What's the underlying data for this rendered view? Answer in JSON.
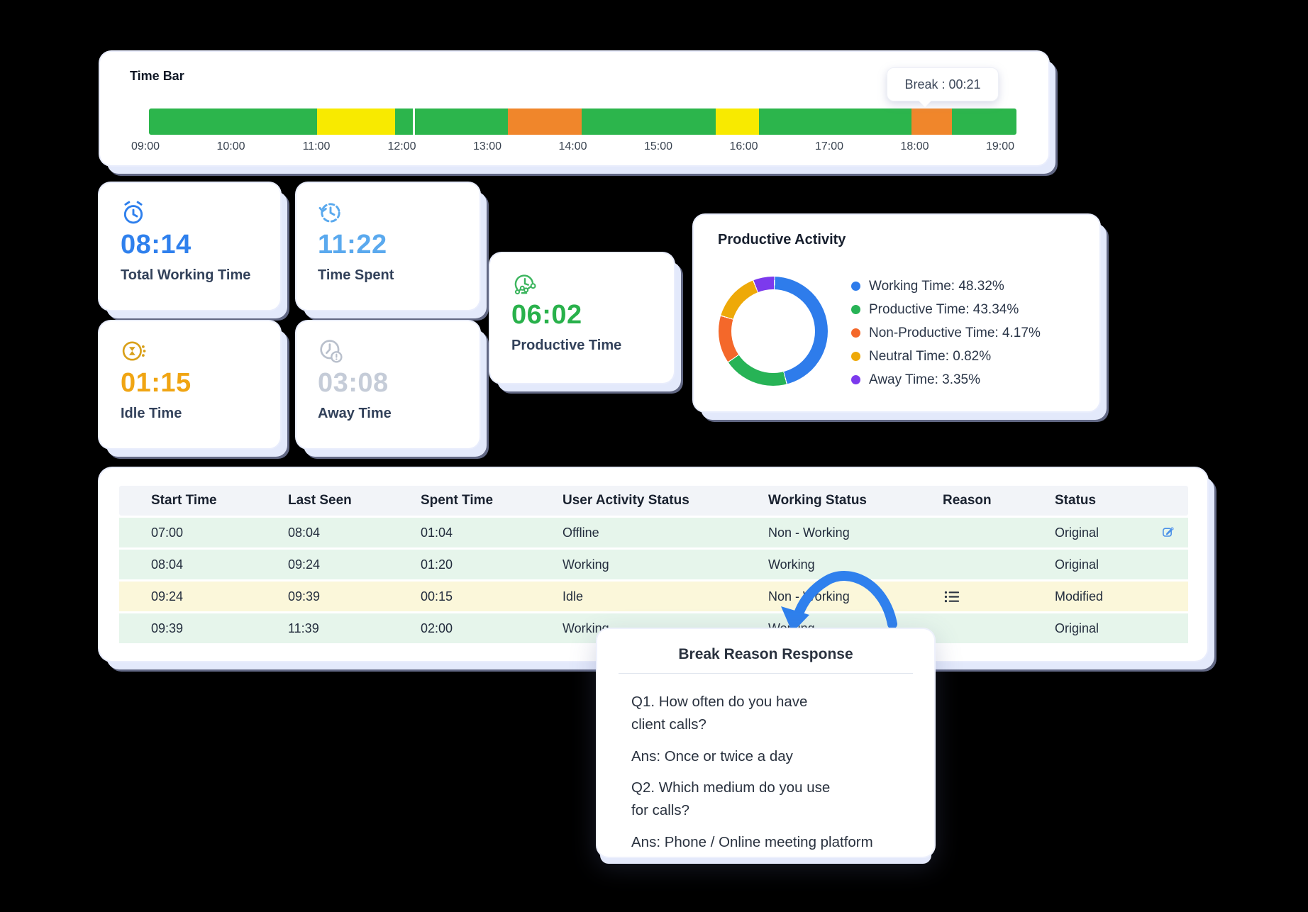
{
  "colors": {
    "working": "#2cb54c",
    "idle": "#f8ea00",
    "break": "#f0862b",
    "divider": "#ffffff",
    "accent_blue": "#2f80ed"
  },
  "time_bar": {
    "title": "Time Bar",
    "tooltip": "Break : 00:21",
    "ticks": [
      "09:00",
      "10:00",
      "11:00",
      "12:00",
      "13:00",
      "14:00",
      "15:00",
      "16:00",
      "17:00",
      "18:00",
      "19:00"
    ],
    "segments": [
      {
        "status": "working",
        "width": 19.38
      },
      {
        "status": "idle",
        "width": 8.99
      },
      {
        "status": "working",
        "width": 2.05
      },
      {
        "status": "divider",
        "width": 0.24
      },
      {
        "status": "working",
        "width": 10.71
      },
      {
        "status": "break",
        "width": 8.51
      },
      {
        "status": "working",
        "width": 15.45
      },
      {
        "status": "idle",
        "width": 4.99
      },
      {
        "status": "working",
        "width": 17.58
      },
      {
        "status": "break",
        "width": 4.66
      },
      {
        "status": "working",
        "width": 7.44
      }
    ]
  },
  "stats": [
    {
      "icon": "alarm-clock-icon",
      "value": "08:14",
      "label": "Total Working Time",
      "color": "#2f80ed"
    },
    {
      "icon": "history-clock-icon",
      "value": "11:22",
      "label": "Time Spent",
      "color": "#5aa9ee"
    },
    {
      "icon": "hourglass-icon",
      "value": "01:15",
      "label": "Idle Time",
      "color": "#f0a513"
    },
    {
      "icon": "away-clock-icon",
      "value": "03:08",
      "label": "Away Time",
      "color": "#c5ccd8"
    },
    {
      "icon": "gauge-icon",
      "value": "06:02",
      "label": "Productive Time",
      "color": "#29b14b"
    }
  ],
  "productive_activity": {
    "title": "Productive Activity"
  },
  "chart_data": {
    "type": "pie",
    "donut": true,
    "title": "Productive Activity",
    "legend_position": "right",
    "labels": [
      "Working Time",
      "Productive Time",
      "Non-Productive Time",
      "Neutral Time",
      "Away Time"
    ],
    "values": [
      48.32,
      43.34,
      4.17,
      0.82,
      3.35
    ],
    "colors": [
      "#2e7ceb",
      "#27b356",
      "#f4682a",
      "#eea908",
      "#7c3aed"
    ],
    "visual_segments": [
      {
        "color": "#7c3aed",
        "deg": 22
      },
      {
        "color": "#2e7ceb",
        "deg": 163
      },
      {
        "color": "#27b356",
        "deg": 69
      },
      {
        "color": "#f4682a",
        "deg": 50
      },
      {
        "color": "#eea908",
        "deg": 51
      }
    ],
    "rotation_deg": -21,
    "gap_deg": 1
  },
  "table": {
    "headers": [
      "Start Time",
      "Last Seen",
      "Spent Time",
      "User Activity Status",
      "Working Status",
      "Reason",
      "Status"
    ],
    "rows": [
      {
        "start_time": "07:00",
        "last_seen": "08:04",
        "spent_time": "01:04",
        "activity": "Offline",
        "working": "Non - Working",
        "reason_icon": false,
        "status": "Original",
        "edit_icon": true,
        "highlight": "green"
      },
      {
        "start_time": "08:04",
        "last_seen": "09:24",
        "spent_time": "01:20",
        "activity": "Working",
        "working": "Working",
        "reason_icon": false,
        "status": "Original",
        "edit_icon": false,
        "highlight": "green"
      },
      {
        "start_time": "09:24",
        "last_seen": "09:39",
        "spent_time": "00:15",
        "activity": "Idle",
        "working": "Non - Working",
        "reason_icon": true,
        "status": "Modified",
        "edit_icon": false,
        "highlight": "yellow"
      },
      {
        "start_time": "09:39",
        "last_seen": "11:39",
        "spent_time": "02:00",
        "activity": "Working",
        "working": "Working",
        "reason_icon": false,
        "status": "Original",
        "edit_icon": false,
        "highlight": "green"
      }
    ]
  },
  "popup": {
    "title": "Break Reason Response",
    "paragraphs": [
      "Q1. How often do you have\nclient calls?",
      "Ans: Once or twice a day",
      "Q2. Which medium do you use\nfor calls?",
      "Ans: Phone / Online meeting platform"
    ]
  }
}
